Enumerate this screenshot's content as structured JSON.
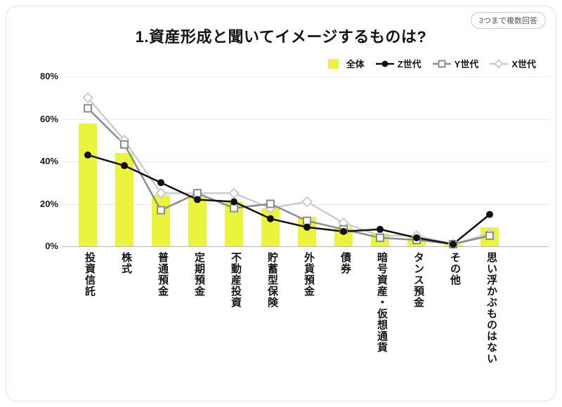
{
  "badge": "3つまで複数回答",
  "title": "1.資産形成と聞いてイメージするものは?",
  "colors": {
    "grid": "#e8e8e8",
    "axis": "#b5b5b5"
  },
  "chart_data": {
    "type": "bar",
    "subtype": "bar-with-line-overlay",
    "title": "1.資産形成と聞いてイメージするものは?",
    "note": "3つまで複数回答",
    "categories": [
      "投資信託",
      "株式",
      "普通預金",
      "定期預金",
      "不動産投資",
      "貯蓄型保険",
      "外貨預金",
      "債券",
      "暗号資産・仮想通貨",
      "タンス預金",
      "その他",
      "思い浮かぶものはない"
    ],
    "series": [
      {
        "name": "全体",
        "type": "bar",
        "marker": "bar",
        "color": "#ebf43c",
        "values": [
          58,
          44,
          24,
          23,
          21,
          18,
          14,
          9,
          6,
          4,
          1,
          9
        ]
      },
      {
        "name": "Z世代",
        "type": "line",
        "marker": "circle",
        "color": "#111111",
        "values": [
          43,
          38,
          30,
          22,
          21,
          13,
          9,
          7,
          8,
          4,
          1,
          15
        ]
      },
      {
        "name": "Y世代",
        "type": "line",
        "marker": "square",
        "color": "#8c8c8c",
        "values": [
          65,
          48,
          17,
          25,
          18,
          20,
          12,
          8,
          4,
          3,
          1,
          5
        ]
      },
      {
        "name": "X世代",
        "type": "line",
        "marker": "diamond",
        "color": "#cccccc",
        "values": [
          70,
          50,
          25,
          25,
          25,
          18,
          21,
          11,
          5,
          5,
          1,
          6
        ]
      }
    ],
    "xlabel": "",
    "ylabel": "",
    "ylim": [
      0,
      80
    ],
    "yticks": [
      0,
      20,
      40,
      60,
      80
    ],
    "ytick_labels": [
      "0%",
      "20%",
      "40%",
      "60%",
      "80%"
    ],
    "grid": true,
    "legend_position": "top-right"
  }
}
